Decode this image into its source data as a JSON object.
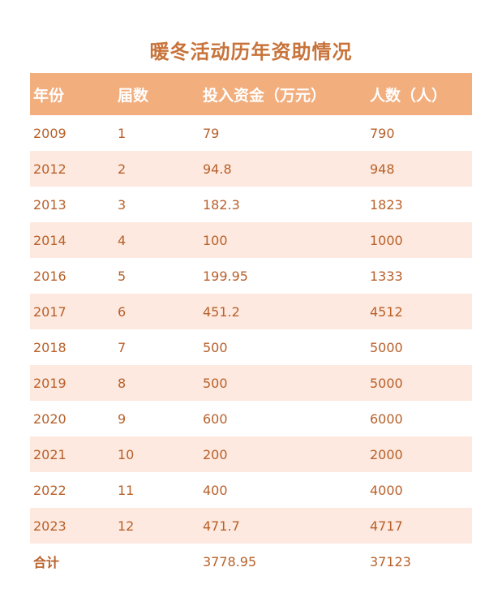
{
  "title": "暖冬活动历年资助情况",
  "headers": {
    "year": "年份",
    "session": "届数",
    "funds": "投入资金（万元）",
    "people": "人数（人）"
  },
  "rows": [
    {
      "year": "2009",
      "session": "1",
      "funds": "79",
      "people": "790"
    },
    {
      "year": "2012",
      "session": "2",
      "funds": "94.8",
      "people": "948"
    },
    {
      "year": "2013",
      "session": "3",
      "funds": "182.3",
      "people": "1823"
    },
    {
      "year": "2014",
      "session": "4",
      "funds": "100",
      "people": "1000"
    },
    {
      "year": "2016",
      "session": "5",
      "funds": "199.95",
      "people": "1333"
    },
    {
      "year": "2017",
      "session": "6",
      "funds": "451.2",
      "people": "4512"
    },
    {
      "year": "2018",
      "session": "7",
      "funds": "500",
      "people": "5000"
    },
    {
      "year": "2019",
      "session": "8",
      "funds": "500",
      "people": "5000"
    },
    {
      "year": "2020",
      "session": "9",
      "funds": "600",
      "people": "6000"
    },
    {
      "year": "2021",
      "session": "10",
      "funds": "200",
      "people": "2000"
    },
    {
      "year": "2022",
      "session": "11",
      "funds": "400",
      "people": "4000"
    },
    {
      "year": "2023",
      "session": "12",
      "funds": "471.7",
      "people": "4717"
    }
  ],
  "total": {
    "label": "合计",
    "funds": "3778.95",
    "people": "37123"
  },
  "colors": {
    "title": "#c8733a",
    "header_bg": "#f2ae7d",
    "header_text": "#ffffff",
    "stripe": "#fde9df",
    "body_text": "#b8602a"
  }
}
